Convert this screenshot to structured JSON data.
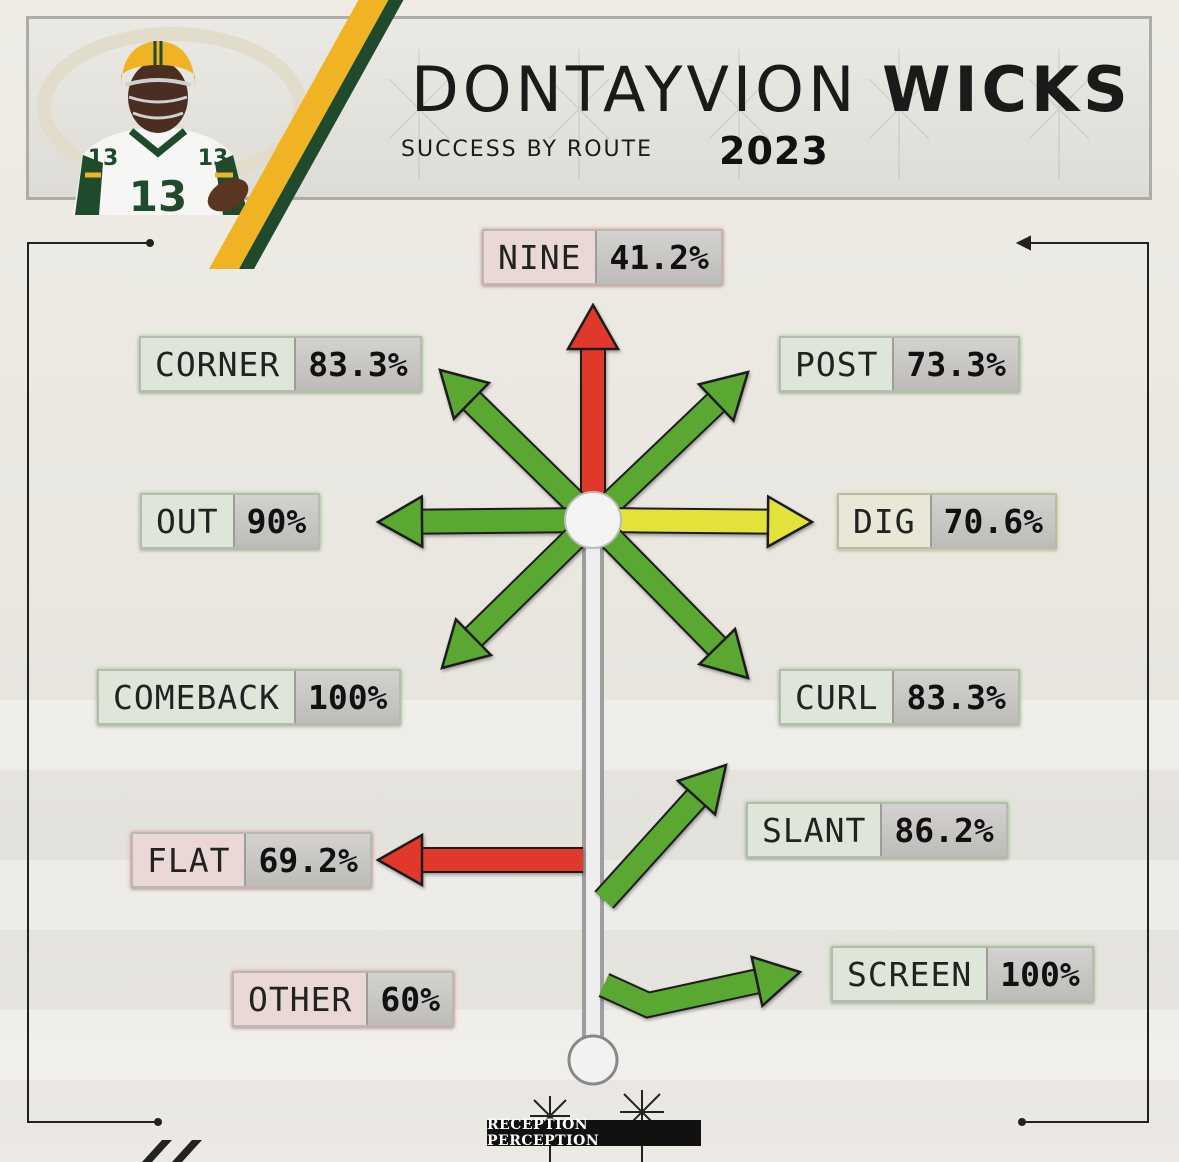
{
  "header": {
    "first_name": "DONTAYVION",
    "last_name": "WICKS",
    "subtitle": "SUCCESS BY ROUTE",
    "year": "2023",
    "jersey_number": "13"
  },
  "colors": {
    "success_high": "#5aa832",
    "success_mid": "#e3e23a",
    "success_low": "#e0392b",
    "team_green": "#1f4a2c",
    "team_gold": "#f0b323"
  },
  "routes": [
    {
      "name": "NINE",
      "value": "41.2%",
      "rating": "red"
    },
    {
      "name": "CORNER",
      "value": "83.3%",
      "rating": "green"
    },
    {
      "name": "POST",
      "value": "73.3%",
      "rating": "green"
    },
    {
      "name": "OUT",
      "value": "90%",
      "rating": "green"
    },
    {
      "name": "DIG",
      "value": "70.6%",
      "rating": "yellow"
    },
    {
      "name": "COMEBACK",
      "value": "100%",
      "rating": "green"
    },
    {
      "name": "CURL",
      "value": "83.3%",
      "rating": "green"
    },
    {
      "name": "SLANT",
      "value": "86.2%",
      "rating": "green"
    },
    {
      "name": "FLAT",
      "value": "69.2%",
      "rating": "red"
    },
    {
      "name": "OTHER",
      "value": "60%",
      "rating": "red"
    },
    {
      "name": "SCREEN",
      "value": "100%",
      "rating": "green"
    }
  ],
  "footer": {
    "brand": "RECEPTION PERCEPTION"
  }
}
